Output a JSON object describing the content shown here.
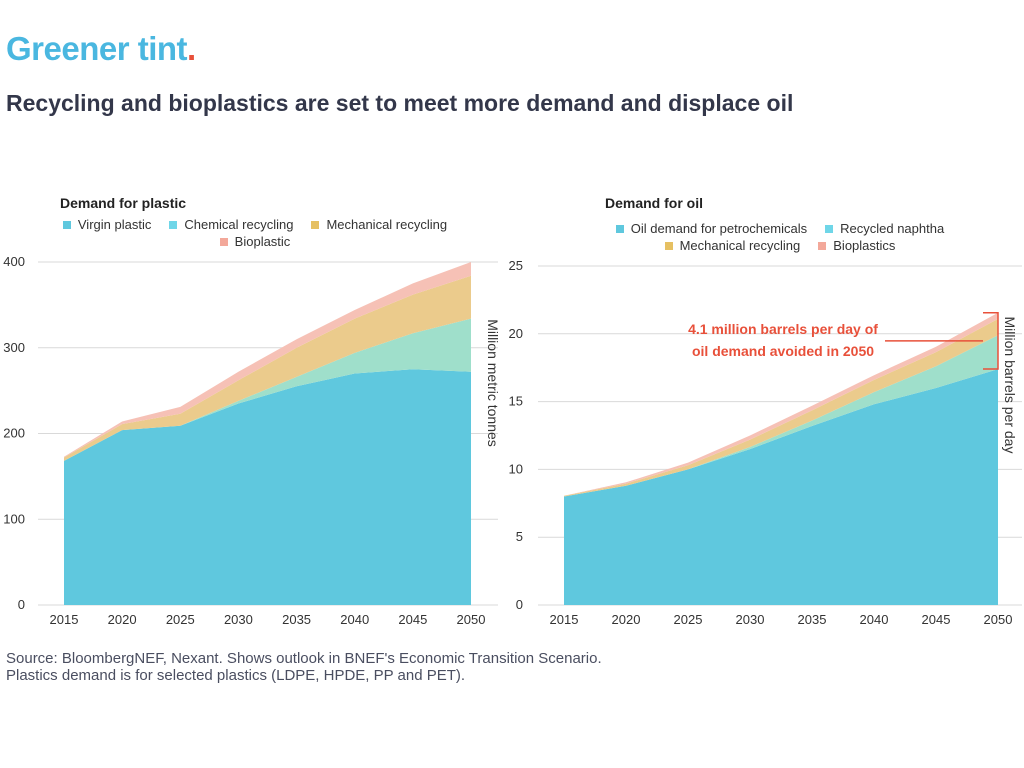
{
  "brand": {
    "name": "Greener tint",
    "dot": "."
  },
  "headline": "Recycling and bioplastics are set to meet more demand and displace oil",
  "source": {
    "line1": "Source: BloombergNEF, Nexant. Shows outlook in BNEF's Economic Transition Scenario.",
    "line2": "Plastics demand is for selected plastics (LDPE, HPDE, PP and PET)."
  },
  "colors": {
    "virgin": "#5fc8de",
    "chemical": "#9fdfcb",
    "mechanical": "#ebcb8c",
    "bio": "#f6c1b6",
    "legend_chemical": "#6fd6e8",
    "legend_mechanical": "#e6c062",
    "legend_bio": "#f3a89a",
    "annotation": "#e8503a",
    "grid": "#d9d9d9"
  },
  "chart_data": [
    {
      "type": "area",
      "stacked": true,
      "title": "Demand for plastic",
      "ylabel": "Million metric tonnes",
      "xlabel": "",
      "ylim": [
        0,
        400
      ],
      "yticks": [
        0,
        100,
        200,
        300,
        400
      ],
      "x": [
        2015,
        2020,
        2025,
        2030,
        2035,
        2040,
        2045,
        2050
      ],
      "legend_rows": [
        [
          "Virgin plastic",
          "Chemical recycling",
          "Mechanical recycling"
        ],
        [
          "Bioplastic"
        ]
      ],
      "series": [
        {
          "name": "Virgin plastic",
          "color_key": "virgin",
          "legend_color_key": "virgin",
          "values": [
            168,
            204,
            209,
            235,
            255,
            270,
            275,
            272
          ]
        },
        {
          "name": "Chemical recycling",
          "color_key": "chemical",
          "legend_color_key": "legend_chemical",
          "values": [
            0,
            0,
            0,
            3,
            11,
            24,
            42,
            62
          ]
        },
        {
          "name": "Mechanical recycling",
          "color_key": "mechanical",
          "legend_color_key": "legend_mechanical",
          "values": [
            4,
            7,
            14,
            24,
            34,
            40,
            45,
            50
          ]
        },
        {
          "name": "Bioplastic",
          "color_key": "bio",
          "legend_color_key": "legend_bio",
          "values": [
            1,
            3,
            8,
            10,
            10,
            10,
            13,
            16
          ]
        }
      ]
    },
    {
      "type": "area",
      "stacked": true,
      "title": "Demand for oil",
      "ylabel": "Million barrels per day",
      "xlabel": "",
      "ylim": [
        0,
        25
      ],
      "yticks": [
        0,
        5,
        10,
        15,
        20,
        25
      ],
      "x": [
        2015,
        2020,
        2025,
        2030,
        2035,
        2040,
        2045,
        2050
      ],
      "legend_rows": [
        [
          "Oil demand for petrochemicals",
          "Recycled naphtha"
        ],
        [
          "Mechanical recycling",
          "Bioplastics"
        ]
      ],
      "series": [
        {
          "name": "Oil demand for petrochemicals",
          "color_key": "virgin",
          "legend_color_key": "virgin",
          "values": [
            8.0,
            8.8,
            10.0,
            11.5,
            13.2,
            14.8,
            16.0,
            17.4
          ]
        },
        {
          "name": "Recycled naphtha",
          "color_key": "chemical",
          "legend_color_key": "legend_chemical",
          "values": [
            0,
            0,
            0,
            0.15,
            0.4,
            0.9,
            1.6,
            2.5
          ]
        },
        {
          "name": "Mechanical recycling",
          "color_key": "mechanical",
          "legend_color_key": "legend_mechanical",
          "values": [
            0.05,
            0.15,
            0.3,
            0.55,
            0.75,
            0.9,
            1.05,
            1.2
          ]
        },
        {
          "name": "Bioplastics",
          "color_key": "bio",
          "legend_color_key": "legend_bio",
          "values": [
            0,
            0.1,
            0.2,
            0.3,
            0.35,
            0.35,
            0.4,
            0.45
          ]
        }
      ],
      "annotation": {
        "line1": "4.1 million barrels per day of",
        "line2": "oil demand avoided in 2050"
      }
    }
  ]
}
